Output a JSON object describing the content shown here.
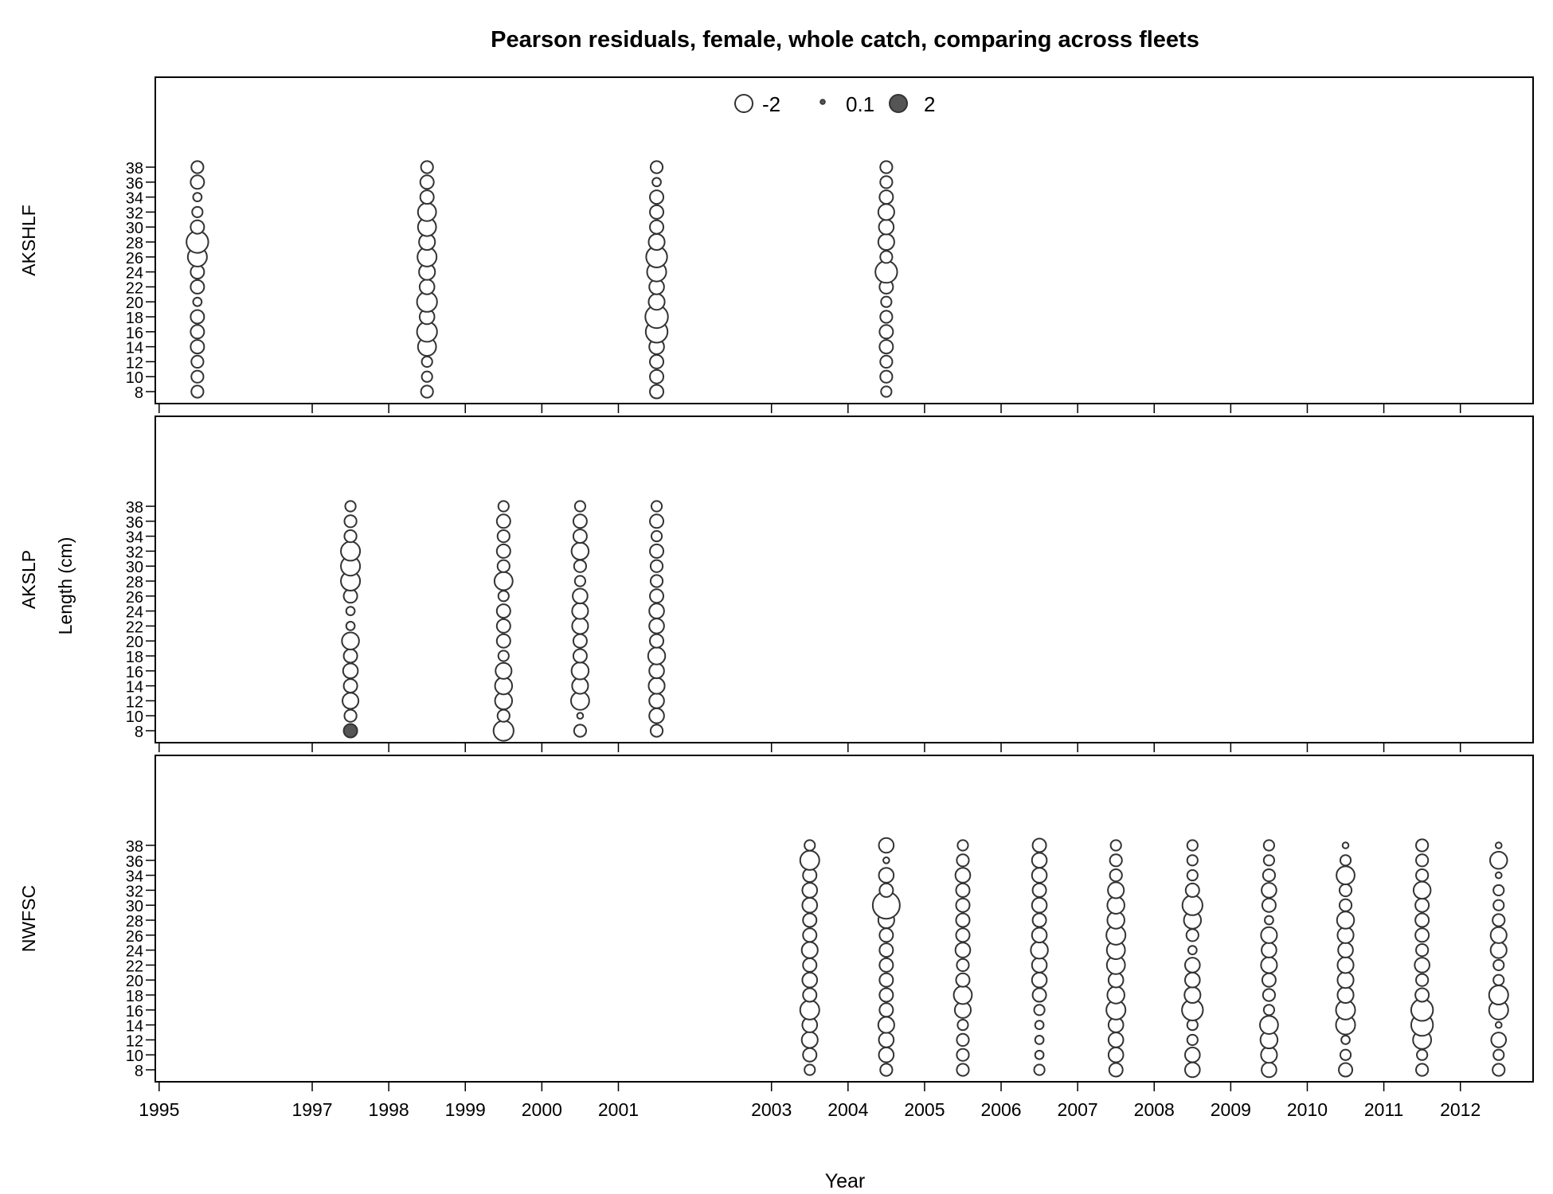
{
  "chart_data": {
    "type": "scatter",
    "title": "Pearson residuals, female, whole catch, comparing across fleets",
    "xlabel": "Year",
    "ylabel": "Length (cm)",
    "xlim": [
      1994.95,
      2012.95
    ],
    "ylim": [
      8,
      38
    ],
    "x_ticks": [
      1995,
      1997,
      1998,
      1999,
      2000,
      2001,
      2003,
      2004,
      2005,
      2006,
      2007,
      2008,
      2009,
      2010,
      2011,
      2012
    ],
    "y_ticks": [
      8,
      10,
      12,
      14,
      16,
      18,
      20,
      22,
      24,
      26,
      28,
      30,
      32,
      34,
      36,
      38
    ],
    "legend": {
      "position": "top-center",
      "entries": [
        {
          "label": "-2",
          "value": -2
        },
        {
          "label": "0.1",
          "value": 0.1
        },
        {
          "label": "2",
          "value": 2
        }
      ]
    },
    "colors": {
      "negative_fill": "#ffffff",
      "positive_fill": "#555555",
      "stroke": "#333333"
    },
    "lengths": [
      8,
      10,
      12,
      14,
      16,
      18,
      20,
      22,
      24,
      26,
      28,
      30,
      32,
      34,
      36,
      38
    ],
    "panels": [
      {
        "fleet": "AKSHLF",
        "columns": [
          {
            "x": 1995.5,
            "residuals": [
              -0.4,
              -0.4,
              -0.4,
              -0.5,
              -0.5,
              -0.5,
              -0.2,
              -0.5,
              -0.5,
              -1.0,
              -1.3,
              -0.5,
              -0.3,
              -0.2,
              -0.5,
              -0.4
            ]
          },
          {
            "x": 1998.5,
            "residuals": [
              -0.4,
              -0.3,
              -0.3,
              -0.9,
              -1.1,
              -0.6,
              -1.1,
              -0.6,
              -0.7,
              -1.0,
              -0.7,
              -0.9,
              -0.9,
              -0.5,
              -0.5,
              -0.4
            ]
          },
          {
            "x": 2001.5,
            "residuals": [
              -0.5,
              -0.5,
              -0.5,
              -0.6,
              -1.3,
              -1.4,
              -0.7,
              -0.6,
              -1.0,
              -1.2,
              -0.7,
              -0.5,
              -0.5,
              -0.5,
              -0.2,
              -0.4
            ]
          },
          {
            "x": 2004.5,
            "residuals": [
              -0.3,
              -0.4,
              -0.4,
              -0.5,
              -0.5,
              -0.4,
              -0.3,
              -0.5,
              -1.3,
              -0.4,
              -0.7,
              -0.6,
              -0.7,
              -0.5,
              -0.4,
              -0.4
            ]
          }
        ]
      },
      {
        "fleet": "AKSLP",
        "columns": [
          {
            "x": 1997.5,
            "residuals": [
              0.5,
              -0.4,
              -0.7,
              -0.5,
              -0.6,
              -0.5,
              -0.8,
              -0.2,
              -0.2,
              -0.5,
              -1.0,
              -1.0,
              -1.0,
              -0.4,
              -0.4,
              -0.3
            ]
          },
          {
            "x": 1999.5,
            "residuals": [
              -1.1,
              -0.4,
              -0.8,
              -0.8,
              -0.7,
              -0.3,
              -0.5,
              -0.5,
              -0.5,
              -0.3,
              -0.9,
              -0.4,
              -0.5,
              -0.4,
              -0.5,
              -0.3
            ]
          },
          {
            "x": 2000.5,
            "residuals": [
              -0.4,
              -0.1,
              -0.9,
              -0.7,
              -0.8,
              -0.5,
              -0.5,
              -0.7,
              -0.7,
              -0.6,
              -0.3,
              -0.4,
              -0.8,
              -0.5,
              -0.5,
              -0.3
            ]
          },
          {
            "x": 2001.5,
            "residuals": [
              -0.4,
              -0.6,
              -0.6,
              -0.7,
              -0.6,
              -0.8,
              -0.5,
              -0.6,
              -0.6,
              -0.5,
              -0.4,
              -0.4,
              -0.5,
              -0.3,
              -0.5,
              -0.3
            ]
          }
        ]
      },
      {
        "fleet": "NWFSC",
        "columns": [
          {
            "x": 2003.5,
            "residuals": [
              -0.3,
              -0.5,
              -0.7,
              -0.6,
              -1.0,
              -0.5,
              -0.6,
              -0.5,
              -0.7,
              -0.5,
              -0.5,
              -0.6,
              -0.6,
              -0.5,
              -1.0,
              -0.3
            ]
          },
          {
            "x": 2004.5,
            "residuals": [
              -0.4,
              -0.6,
              -0.6,
              -0.7,
              -0.5,
              -0.5,
              -0.5,
              -0.5,
              -0.5,
              -0.5,
              -0.7,
              -2.0,
              -0.5,
              -0.6,
              -0.1,
              -0.6
            ]
          },
          {
            "x": 2005.5,
            "residuals": [
              -0.4,
              -0.4,
              -0.4,
              -0.3,
              -0.7,
              -0.9,
              -0.5,
              -0.4,
              -0.6,
              -0.5,
              -0.5,
              -0.5,
              -0.5,
              -0.6,
              -0.4,
              -0.3
            ]
          },
          {
            "x": 2006.5,
            "residuals": [
              -0.3,
              -0.2,
              -0.2,
              -0.2,
              -0.3,
              -0.5,
              -0.6,
              -0.6,
              -0.8,
              -0.6,
              -0.5,
              -0.6,
              -0.5,
              -0.6,
              -0.6,
              -0.5
            ]
          },
          {
            "x": 2007.5,
            "residuals": [
              -0.5,
              -0.6,
              -0.6,
              -0.6,
              -1.0,
              -0.8,
              -0.6,
              -0.9,
              -0.9,
              -1.0,
              -0.8,
              -0.8,
              -0.7,
              -0.4,
              -0.4,
              -0.3
            ]
          },
          {
            "x": 2008.5,
            "residuals": [
              -0.6,
              -0.6,
              -0.3,
              -0.3,
              -1.2,
              -0.7,
              -0.6,
              -0.6,
              -0.2,
              -0.4,
              -0.8,
              -1.1,
              -0.5,
              -0.3,
              -0.3,
              -0.3
            ]
          },
          {
            "x": 2009.5,
            "residuals": [
              -0.6,
              -0.7,
              -0.8,
              -0.9,
              -0.3,
              -0.4,
              -0.5,
              -0.7,
              -0.6,
              -0.7,
              -0.2,
              -0.5,
              -0.6,
              -0.4,
              -0.3,
              -0.3
            ]
          },
          {
            "x": 2010.5,
            "residuals": [
              -0.5,
              -0.3,
              -0.2,
              -1.0,
              -1.0,
              -0.7,
              -0.7,
              -0.7,
              -0.6,
              -0.7,
              -0.8,
              -0.4,
              -0.4,
              -0.9,
              -0.3,
              -0.1
            ]
          },
          {
            "x": 2011.5,
            "residuals": [
              -0.4,
              -0.3,
              -0.9,
              -1.3,
              -1.3,
              -0.5,
              -0.4,
              -0.6,
              -0.4,
              -0.5,
              -0.5,
              -0.5,
              -0.8,
              -0.4,
              -0.4,
              -0.4
            ]
          },
          {
            "x": 2012.5,
            "residuals": [
              -0.4,
              -0.3,
              -0.6,
              -0.1,
              -1.0,
              -1.0,
              -0.3,
              -0.3,
              -0.7,
              -0.7,
              -0.4,
              -0.3,
              -0.3,
              -0.1,
              -0.8,
              -0.1
            ]
          }
        ]
      }
    ]
  }
}
